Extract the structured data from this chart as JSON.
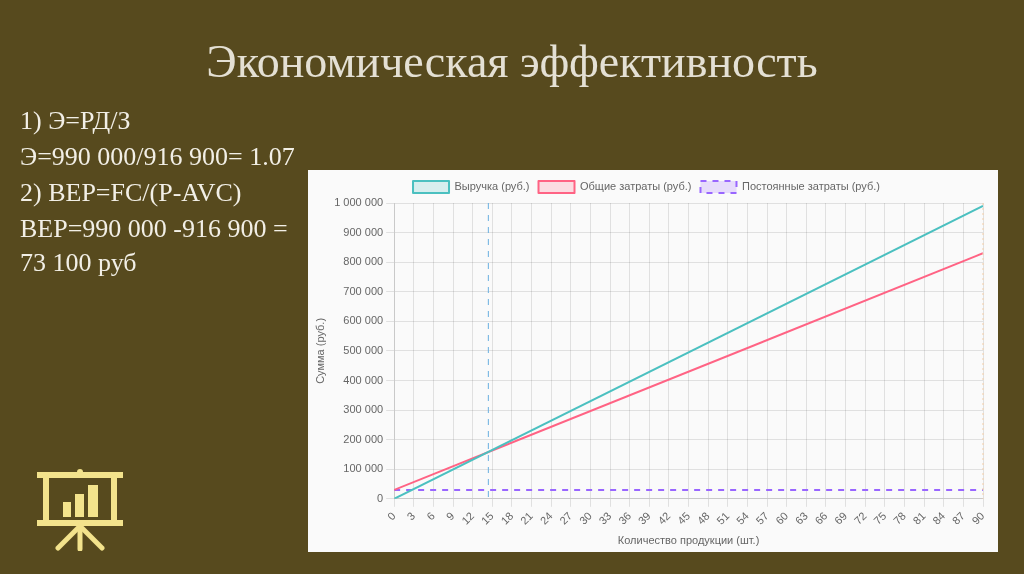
{
  "chart_data": {
    "type": "line",
    "title": "Экономическая эффективность",
    "annotations": [
      "1) Э=РД/З",
      "Э=990 000/916 900= 1.07",
      "2) BEP=FC/(P-AVC)",
      "BEP=990 000 -916 900 = 73 100 руб"
    ],
    "xlabel": "Количество продукции (шт.)",
    "ylabel": "Сумма (руб.)",
    "x": [
      0,
      90
    ],
    "series": [
      {
        "name": "Выручка (руб.)",
        "color": "#4bc0c0",
        "values": [
          0,
          990000
        ]
      },
      {
        "name": "Общие затраты (руб.)",
        "color": "#ff6384",
        "values": [
          30000,
          830000
        ]
      },
      {
        "name": "Постоянные затраты (руб.)",
        "color": "#9966ff",
        "values": [
          30000,
          30000
        ],
        "line_style": "dashed"
      }
    ],
    "xlim": [
      0,
      90
    ],
    "xticks": [
      0,
      3,
      6,
      9,
      12,
      15,
      18,
      21,
      24,
      27,
      30,
      33,
      36,
      39,
      42,
      45,
      48,
      51,
      54,
      57,
      60,
      63,
      66,
      69,
      72,
      75,
      78,
      81,
      84,
      87,
      90
    ],
    "ylim": [
      0,
      1000000
    ],
    "yticks": [
      0,
      {
        "value": 100000,
        "label": "100 000"
      },
      {
        "value": 200000,
        "label": "200 000"
      },
      {
        "value": 300000,
        "label": "300 000"
      },
      {
        "value": 400000,
        "label": "400 000"
      },
      {
        "value": 500000,
        "label": "500 000"
      },
      {
        "value": 600000,
        "label": "600 000"
      },
      {
        "value": 700000,
        "label": "700 000"
      },
      {
        "value": 800000,
        "label": "800 000"
      },
      {
        "value": 900000,
        "label": "900 000"
      },
      {
        "value": 1000000,
        "label": "1 000 000"
      }
    ],
    "ref_lines": [
      {
        "axis": "x",
        "value": 14.4,
        "color": "#6aafe0",
        "line_style": "dashed"
      },
      {
        "axis": "x",
        "value": 90,
        "color": "#f5cfa8",
        "line_style": "dotted"
      }
    ],
    "grid": true,
    "legend": "top",
    "marker": "none"
  }
}
